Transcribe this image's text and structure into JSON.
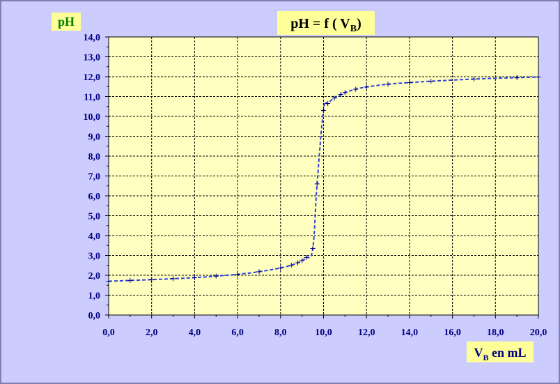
{
  "chart_data": {
    "type": "line",
    "title": "pH = f ( V",
    "title_sub": "B",
    "title_end": ")",
    "ylabel": "pH",
    "xlabel_main": "V",
    "xlabel_sub": "B",
    "xlabel_end": " en mL",
    "xlim": [
      0,
      20
    ],
    "ylim": [
      0,
      14
    ],
    "x_ticks": [
      "0,0",
      "2,0",
      "4,0",
      "6,0",
      "8,0",
      "10,0",
      "12,0",
      "14,0",
      "16,0",
      "18,0",
      "20,0"
    ],
    "y_ticks": [
      "0,0",
      "1,0",
      "2,0",
      "3,0",
      "4,0",
      "5,0",
      "6,0",
      "7,0",
      "8,0",
      "9,0",
      "10,0",
      "11,0",
      "12,0",
      "13,0",
      "14,0"
    ],
    "grid": true,
    "marker": "+",
    "colors": {
      "line": "#2f3fe0",
      "plot_bg": "#ffffc0",
      "frame_bg": "#ccccff",
      "box_bg": "#ffff99",
      "tick": "#000080",
      "ylabel": "#008000"
    },
    "series": [
      {
        "points": [
          [
            0.0,
            1.7
          ],
          [
            1.0,
            1.74
          ],
          [
            2.0,
            1.78
          ],
          [
            3.0,
            1.83
          ],
          [
            4.0,
            1.88
          ],
          [
            5.0,
            1.96
          ],
          [
            6.0,
            2.05
          ],
          [
            7.0,
            2.18
          ],
          [
            8.0,
            2.37
          ],
          [
            8.5,
            2.51
          ],
          [
            8.8,
            2.63
          ],
          [
            9.0,
            2.74
          ],
          [
            9.2,
            2.89
          ],
          [
            9.5,
            3.35
          ],
          [
            9.7,
            6.6
          ],
          [
            10.0,
            10.3
          ],
          [
            10.2,
            10.65
          ],
          [
            10.5,
            10.92
          ],
          [
            10.8,
            11.1
          ],
          [
            11.0,
            11.2
          ],
          [
            11.5,
            11.37
          ],
          [
            12.0,
            11.48
          ],
          [
            13.0,
            11.62
          ],
          [
            14.0,
            11.7
          ],
          [
            15.0,
            11.77
          ],
          [
            17.0,
            11.88
          ],
          [
            19.0,
            11.95
          ],
          [
            20.0,
            11.98
          ]
        ]
      }
    ]
  }
}
